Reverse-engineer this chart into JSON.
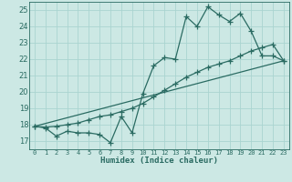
{
  "xlabel": "Humidex (Indice chaleur)",
  "bg_color": "#cce8e4",
  "grid_color": "#aad4d0",
  "line_color": "#2a6b62",
  "xlim": [
    -0.5,
    23.5
  ],
  "ylim": [
    16.5,
    25.5
  ],
  "xticks": [
    0,
    1,
    2,
    3,
    4,
    5,
    6,
    7,
    8,
    9,
    10,
    11,
    12,
    13,
    14,
    15,
    16,
    17,
    18,
    19,
    20,
    21,
    22,
    23
  ],
  "yticks": [
    17,
    18,
    19,
    20,
    21,
    22,
    23,
    24,
    25
  ],
  "line1_x": [
    0,
    1,
    2,
    3,
    4,
    5,
    6,
    7,
    8,
    9,
    10,
    11,
    12,
    13,
    14,
    15,
    16,
    17,
    18,
    19,
    20,
    21,
    22,
    23
  ],
  "line1_y": [
    17.9,
    17.8,
    17.3,
    17.6,
    17.5,
    17.5,
    17.4,
    16.9,
    18.5,
    17.5,
    19.9,
    21.6,
    22.1,
    22.0,
    24.6,
    24.0,
    25.2,
    24.7,
    24.3,
    24.8,
    23.7,
    22.2,
    22.2,
    21.9
  ],
  "line2_x": [
    0,
    1,
    2,
    3,
    4,
    5,
    6,
    7,
    8,
    9,
    10,
    11,
    12,
    13,
    14,
    15,
    16,
    17,
    18,
    19,
    20,
    21,
    22,
    23
  ],
  "line2_y": [
    17.9,
    17.85,
    17.9,
    18.0,
    18.1,
    18.3,
    18.5,
    18.6,
    18.8,
    19.0,
    19.3,
    19.7,
    20.1,
    20.5,
    20.9,
    21.2,
    21.5,
    21.7,
    21.9,
    22.2,
    22.5,
    22.7,
    22.9,
    21.9
  ],
  "line3_x": [
    0,
    23
  ],
  "line3_y": [
    17.9,
    21.9
  ],
  "linewidth": 0.9,
  "marker": "+",
  "markersize": 4,
  "markeredgewidth": 0.9
}
